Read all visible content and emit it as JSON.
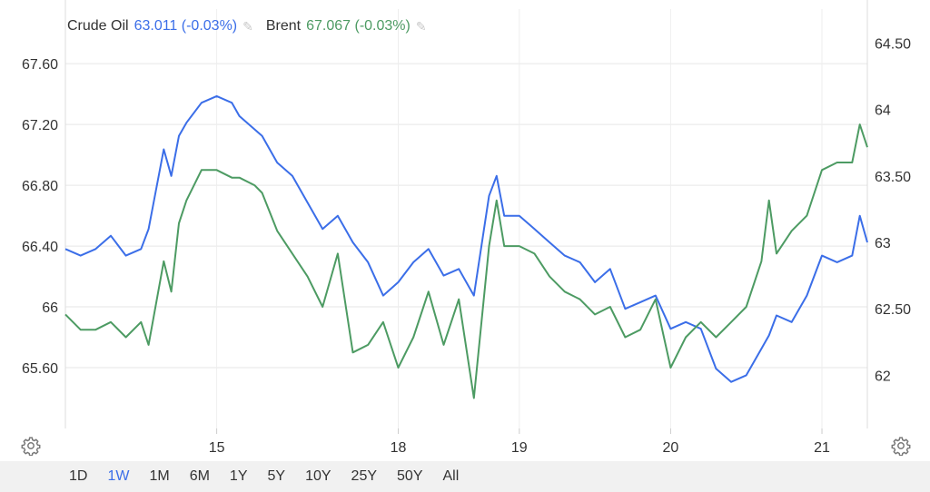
{
  "legend": [
    {
      "name": "Crude Oil",
      "value": "63.011 (-0.03%)",
      "color": "#3b6ee8",
      "icon": "pencil-icon"
    },
    {
      "name": "Brent",
      "value": "67.067 (-0.03%)",
      "color": "#4d9b63",
      "icon": "pencil-icon"
    }
  ],
  "ranges": [
    "1D",
    "1W",
    "1M",
    "6M",
    "1Y",
    "5Y",
    "10Y",
    "25Y",
    "50Y",
    "All"
  ],
  "active_range": "1W",
  "settings_icon": "gear-icon",
  "chart_data": {
    "type": "line",
    "grid": true,
    "x_ticks": [
      {
        "label": "15",
        "x": 1.8
      },
      {
        "label": "18",
        "x": 3.0
      },
      {
        "label": "19",
        "x": 3.8
      },
      {
        "label": "20",
        "x": 4.8
      },
      {
        "label": "21",
        "x": 5.8
      }
    ],
    "xlim": [
      0.8,
      6.1
    ],
    "left_axis": {
      "ylim": [
        65.2,
        67.78
      ],
      "ticks": [
        "67.60",
        "67.20",
        "66.80",
        "66.40",
        "66",
        "65.60"
      ],
      "tick_values": [
        67.6,
        67.2,
        66.8,
        66.4,
        66.0,
        65.6
      ]
    },
    "right_axis": {
      "ylim": [
        61.6,
        64.55
      ],
      "ticks": [
        "64.50",
        "64",
        "63.50",
        "63",
        "62.50",
        "62"
      ],
      "tick_values": [
        64.5,
        64.0,
        63.5,
        63.0,
        62.5,
        62.0
      ]
    },
    "series": [
      {
        "name": "Crude Oil",
        "axis": "right",
        "color": "#3b6ee8",
        "x": [
          0.8,
          0.9,
          1.0,
          1.1,
          1.2,
          1.3,
          1.35,
          1.45,
          1.5,
          1.55,
          1.6,
          1.7,
          1.8,
          1.9,
          1.95,
          2.05,
          2.1,
          2.2,
          2.3,
          2.4,
          2.5,
          2.6,
          2.7,
          2.8,
          2.9,
          3.0,
          3.1,
          3.2,
          3.3,
          3.4,
          3.5,
          3.6,
          3.65,
          3.7,
          3.8,
          3.9,
          4.0,
          4.1,
          4.2,
          4.3,
          4.4,
          4.5,
          4.6,
          4.7,
          4.8,
          4.9,
          5.0,
          5.1,
          5.2,
          5.3,
          5.4,
          5.45,
          5.5,
          5.6,
          5.7,
          5.8,
          5.9,
          6.0,
          6.05,
          6.1
        ],
        "y": [
          62.95,
          62.9,
          62.95,
          63.05,
          62.9,
          62.95,
          63.1,
          63.7,
          63.5,
          63.8,
          63.9,
          64.05,
          64.1,
          64.05,
          63.95,
          63.85,
          63.8,
          63.6,
          63.5,
          63.3,
          63.1,
          63.2,
          63.0,
          62.85,
          62.6,
          62.7,
          62.85,
          62.95,
          62.75,
          62.8,
          62.6,
          63.35,
          63.5,
          63.2,
          63.2,
          63.1,
          63.0,
          62.9,
          62.85,
          62.7,
          62.8,
          62.5,
          62.55,
          62.6,
          62.35,
          62.4,
          62.35,
          62.05,
          61.95,
          62.0,
          62.2,
          62.3,
          62.45,
          62.4,
          62.6,
          62.9,
          62.85,
          62.9,
          63.2,
          63.0
        ]
      },
      {
        "name": "Brent",
        "axis": "left",
        "color": "#4d9b63",
        "x": [
          0.8,
          0.9,
          1.0,
          1.1,
          1.2,
          1.3,
          1.35,
          1.45,
          1.5,
          1.55,
          1.6,
          1.7,
          1.8,
          1.9,
          1.95,
          2.05,
          2.1,
          2.2,
          2.3,
          2.4,
          2.5,
          2.6,
          2.7,
          2.8,
          2.9,
          3.0,
          3.1,
          3.2,
          3.3,
          3.4,
          3.5,
          3.6,
          3.65,
          3.7,
          3.8,
          3.9,
          4.0,
          4.1,
          4.2,
          4.3,
          4.4,
          4.5,
          4.6,
          4.7,
          4.8,
          4.9,
          5.0,
          5.1,
          5.2,
          5.3,
          5.4,
          5.45,
          5.5,
          5.6,
          5.7,
          5.8,
          5.9,
          6.0,
          6.05,
          6.1
        ],
        "y": [
          65.95,
          65.85,
          65.85,
          65.9,
          65.8,
          65.9,
          65.75,
          66.3,
          66.1,
          66.55,
          66.7,
          66.9,
          66.9,
          66.85,
          66.85,
          66.8,
          66.75,
          66.5,
          66.35,
          66.2,
          66.0,
          66.35,
          65.7,
          65.75,
          65.9,
          65.6,
          65.8,
          66.1,
          65.75,
          66.05,
          65.4,
          66.4,
          66.7,
          66.4,
          66.4,
          66.35,
          66.2,
          66.1,
          66.05,
          65.95,
          66.0,
          65.8,
          65.85,
          66.05,
          65.6,
          65.8,
          65.9,
          65.8,
          65.9,
          66.0,
          66.3,
          66.7,
          66.35,
          66.5,
          66.6,
          66.9,
          66.95,
          66.95,
          67.2,
          67.05
        ]
      }
    ]
  }
}
